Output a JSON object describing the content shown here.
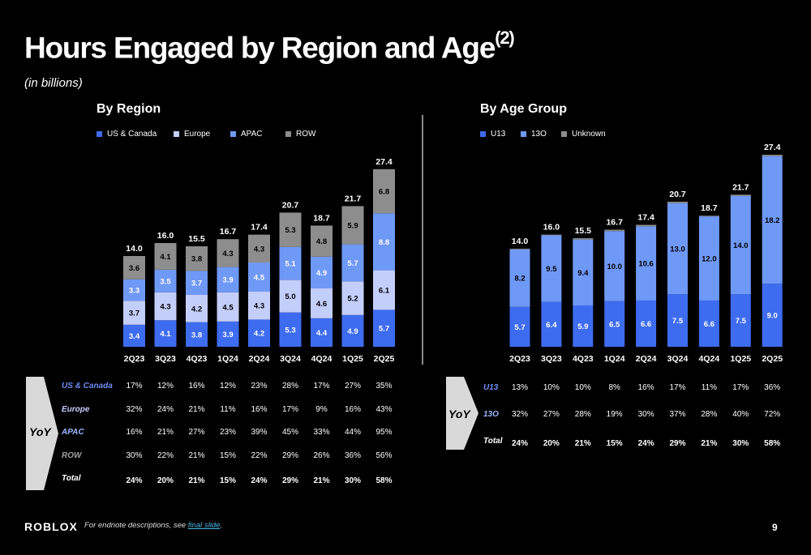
{
  "title": "Hours Engaged by Region and Age",
  "title_sup": "(2)",
  "subtitle": "(in billions)",
  "colors": {
    "us_canada": "#3e6cf0",
    "europe": "#c4cefb",
    "apac": "#6f99f6",
    "row": "#8d8d8d",
    "u13": "#3e6cf0",
    "o13": "#6f99f6",
    "unknown": "#8d8d8d",
    "us_canada_label": "#6f8ef5",
    "apac_label": "#9ab8ff",
    "row_label": "#a0a0a0",
    "yoy_chevron": "#d9d9d9"
  },
  "chart_data": [
    {
      "type": "bar",
      "stacked": true,
      "title": "By Region",
      "categories": [
        "2Q23",
        "3Q23",
        "4Q23",
        "1Q24",
        "2Q24",
        "3Q24",
        "4Q24",
        "1Q25",
        "2Q25"
      ],
      "series": [
        {
          "name": "US & Canada",
          "values": [
            3.4,
            4.1,
            3.8,
            3.9,
            4.2,
            5.3,
            4.4,
            4.9,
            5.7
          ]
        },
        {
          "name": "Europe",
          "values": [
            3.7,
            4.3,
            4.2,
            4.5,
            4.3,
            5.0,
            4.6,
            5.2,
            6.1
          ]
        },
        {
          "name": "APAC",
          "values": [
            3.3,
            3.5,
            3.7,
            3.9,
            4.5,
            5.1,
            4.9,
            5.7,
            8.8
          ]
        },
        {
          "name": "ROW",
          "values": [
            3.6,
            4.1,
            3.8,
            4.3,
            4.3,
            5.3,
            4.8,
            5.9,
            6.8
          ]
        }
      ],
      "totals": [
        "14.0",
        "16.0",
        "15.5",
        "16.7",
        "17.4",
        "20.7",
        "18.7",
        "21.7",
        "27.4"
      ],
      "legend": "top"
    },
    {
      "type": "bar",
      "stacked": true,
      "title": "By Age Group",
      "categories": [
        "2Q23",
        "3Q23",
        "4Q23",
        "1Q24",
        "2Q24",
        "3Q24",
        "4Q24",
        "1Q25",
        "2Q25"
      ],
      "series": [
        {
          "name": "U13",
          "values": [
            5.7,
            6.4,
            5.9,
            6.5,
            6.6,
            7.5,
            6.6,
            7.5,
            9.0
          ]
        },
        {
          "name": "13O",
          "values": [
            8.2,
            9.5,
            9.4,
            10.0,
            10.6,
            13.0,
            12.0,
            14.0,
            18.2
          ]
        },
        {
          "name": "Unknown",
          "values": [
            0.1,
            0.1,
            0.2,
            0.2,
            0.2,
            0.2,
            0.1,
            0.2,
            0.2
          ]
        }
      ],
      "totals": [
        "14.0",
        "16.0",
        "15.5",
        "16.7",
        "17.4",
        "20.7",
        "18.7",
        "21.7",
        "27.4"
      ],
      "legend": "top"
    }
  ],
  "region_yoy": {
    "label": "YoY",
    "rows": [
      {
        "name": "US & Canada",
        "values": [
          "17%",
          "12%",
          "16%",
          "12%",
          "23%",
          "28%",
          "17%",
          "27%",
          "35%"
        ]
      },
      {
        "name": "Europe",
        "values": [
          "32%",
          "24%",
          "21%",
          "11%",
          "16%",
          "17%",
          "9%",
          "16%",
          "43%"
        ]
      },
      {
        "name": "APAC",
        "values": [
          "16%",
          "21%",
          "27%",
          "23%",
          "39%",
          "45%",
          "33%",
          "44%",
          "95%"
        ]
      },
      {
        "name": "ROW",
        "values": [
          "30%",
          "22%",
          "21%",
          "15%",
          "22%",
          "29%",
          "26%",
          "36%",
          "56%"
        ]
      },
      {
        "name": "Total",
        "values": [
          "24%",
          "20%",
          "21%",
          "15%",
          "24%",
          "29%",
          "21%",
          "30%",
          "58%"
        ]
      }
    ]
  },
  "age_yoy": {
    "label": "YoY",
    "rows": [
      {
        "name": "U13",
        "values": [
          "13%",
          "10%",
          "10%",
          "8%",
          "16%",
          "17%",
          "11%",
          "17%",
          "36%"
        ]
      },
      {
        "name": "13O",
        "values": [
          "32%",
          "27%",
          "28%",
          "19%",
          "30%",
          "37%",
          "28%",
          "40%",
          "72%"
        ]
      },
      {
        "name": "Total",
        "values": [
          "24%",
          "20%",
          "21%",
          "15%",
          "24%",
          "29%",
          "21%",
          "30%",
          "58%"
        ]
      }
    ]
  },
  "footer": {
    "logo": "ROBLOX",
    "note": "For endnote descriptions, see ",
    "note_link": "final slide",
    "note_end": ".",
    "page": "9"
  }
}
